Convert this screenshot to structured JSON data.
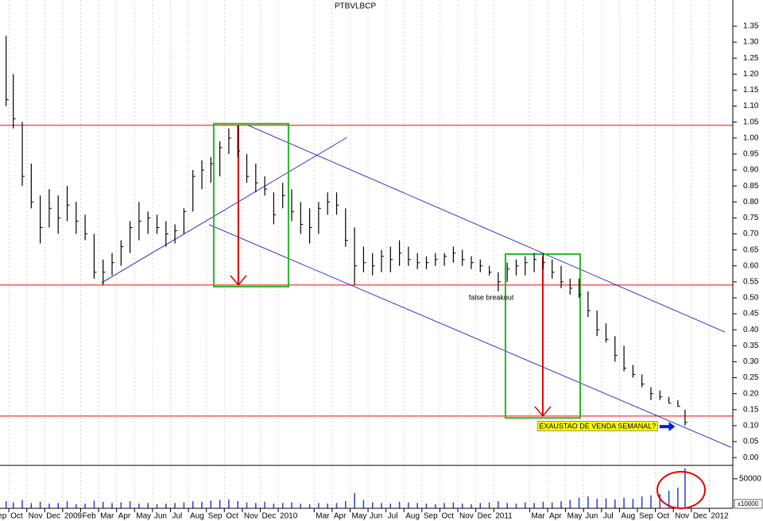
{
  "chart_data": {
    "type": "ohlc",
    "title": "PTBVLBCP",
    "x": [
      0.85,
      1.25,
      1.75,
      2.25,
      2.75,
      3.25,
      3.75,
      4.25,
      4.75,
      5.25,
      5.75,
      6.25,
      6.75,
      7.25,
      7.75,
      8.25,
      8.75,
      9.25,
      9.75,
      10.25,
      10.75,
      11.25,
      11.75,
      12.25,
      12.75,
      13.25,
      13.75,
      14.25,
      14.75,
      15.25,
      15.75,
      16.25,
      16.75,
      17.25,
      17.75,
      18.25,
      18.75,
      19.25,
      19.75,
      20.25,
      20.75,
      21.25,
      21.75,
      22.25,
      22.75,
      23.25,
      23.75,
      24.25,
      24.75,
      25.25,
      25.75,
      26.25,
      26.75,
      27.25,
      27.75,
      28.25,
      28.75,
      29.25,
      29.75,
      30.25,
      30.75,
      31.25,
      31.75,
      32.25,
      32.75,
      33.25,
      33.75,
      34.25,
      34.75,
      35.25,
      35.75,
      36.25,
      36.75,
      37.25,
      37.75,
      38.25,
      38.65
    ],
    "high": [
      1.32,
      1.2,
      1.05,
      0.92,
      0.82,
      0.84,
      0.82,
      0.85,
      0.8,
      0.76,
      0.7,
      0.62,
      0.64,
      0.68,
      0.74,
      0.8,
      0.77,
      0.76,
      0.74,
      0.73,
      0.78,
      0.9,
      0.93,
      0.94,
      0.99,
      1.03,
      1.04,
      0.95,
      0.92,
      0.88,
      0.83,
      0.86,
      0.84,
      0.8,
      0.78,
      0.8,
      0.83,
      0.83,
      0.78,
      0.72,
      0.66,
      0.64,
      0.65,
      0.66,
      0.68,
      0.66,
      0.64,
      0.63,
      0.64,
      0.64,
      0.66,
      0.65,
      0.63,
      0.62,
      0.6,
      0.58,
      0.61,
      0.62,
      0.63,
      0.64,
      0.64,
      0.62,
      0.6,
      0.56,
      0.56,
      0.52,
      0.46,
      0.42,
      0.38,
      0.35,
      0.29,
      0.26,
      0.22,
      0.21,
      0.19,
      0.18,
      0.15
    ],
    "low": [
      1.1,
      1.03,
      0.85,
      0.78,
      0.67,
      0.72,
      0.7,
      0.74,
      0.7,
      0.68,
      0.56,
      0.54,
      0.57,
      0.6,
      0.64,
      0.68,
      0.7,
      0.7,
      0.66,
      0.67,
      0.7,
      0.77,
      0.84,
      0.86,
      0.88,
      0.95,
      0.94,
      0.86,
      0.83,
      0.82,
      0.73,
      0.78,
      0.74,
      0.7,
      0.67,
      0.7,
      0.76,
      0.76,
      0.66,
      0.54,
      0.58,
      0.57,
      0.58,
      0.58,
      0.6,
      0.6,
      0.59,
      0.59,
      0.6,
      0.6,
      0.61,
      0.6,
      0.59,
      0.58,
      0.57,
      0.52,
      0.55,
      0.57,
      0.57,
      0.58,
      0.59,
      0.56,
      0.53,
      0.51,
      0.5,
      0.44,
      0.38,
      0.36,
      0.3,
      0.27,
      0.25,
      0.22,
      0.18,
      0.18,
      0.17,
      0.16,
      0.1
    ],
    "close": [
      1.12,
      1.06,
      0.88,
      0.8,
      0.72,
      0.78,
      0.75,
      0.79,
      0.74,
      0.7,
      0.58,
      0.58,
      0.61,
      0.66,
      0.72,
      0.74,
      0.75,
      0.72,
      0.7,
      0.71,
      0.77,
      0.88,
      0.9,
      0.92,
      0.97,
      1.0,
      0.96,
      0.88,
      0.86,
      0.84,
      0.76,
      0.82,
      0.77,
      0.73,
      0.72,
      0.78,
      0.8,
      0.79,
      0.68,
      0.6,
      0.61,
      0.6,
      0.63,
      0.62,
      0.64,
      0.62,
      0.61,
      0.61,
      0.62,
      0.63,
      0.64,
      0.62,
      0.61,
      0.6,
      0.58,
      0.55,
      0.59,
      0.6,
      0.61,
      0.62,
      0.61,
      0.58,
      0.55,
      0.53,
      0.51,
      0.46,
      0.4,
      0.37,
      0.32,
      0.28,
      0.26,
      0.23,
      0.2,
      0.19,
      0.17,
      0.16,
      0.11
    ],
    "volume": [
      12000,
      10000,
      14000,
      9000,
      11000,
      8000,
      9000,
      12000,
      7000,
      8000,
      13000,
      11000,
      9000,
      10000,
      12000,
      8000,
      9000,
      7000,
      8000,
      9000,
      10000,
      12000,
      11000,
      13000,
      14000,
      15000,
      12000,
      10000,
      9000,
      11000,
      8000,
      9000,
      10000,
      8000,
      7000,
      9000,
      8000,
      9000,
      12000,
      26000,
      14000,
      10000,
      9000,
      8000,
      11000,
      10000,
      9000,
      8000,
      7000,
      9000,
      10000,
      8000,
      7000,
      9000,
      10000,
      12000,
      9000,
      8000,
      10000,
      9000,
      11000,
      10000,
      12000,
      14000,
      18000,
      20000,
      16000,
      17000,
      15000,
      18000,
      16000,
      20000,
      22000,
      24000,
      30000,
      35000,
      68000
    ],
    "color": "#000000",
    "volume_color": "#2b3bd6",
    "xlim": [
      0.51,
      41.22
    ],
    "xticks": [
      {
        "value": 0,
        "label": "Sep"
      },
      {
        "value": 1,
        "label": "Oct"
      },
      {
        "value": 2,
        "label": "Nov"
      },
      {
        "value": 3,
        "label": "Dec"
      },
      {
        "value": 4,
        "label": "2009"
      },
      {
        "value": 5,
        "label": "Feb"
      },
      {
        "value": 6,
        "label": "Mar"
      },
      {
        "value": 7,
        "label": "Apr"
      },
      {
        "value": 8,
        "label": "May"
      },
      {
        "value": 9,
        "label": "Jun"
      },
      {
        "value": 10,
        "label": "Jul"
      },
      {
        "value": 11,
        "label": "Aug"
      },
      {
        "value": 12,
        "label": "Sep"
      },
      {
        "value": 13,
        "label": "Oct"
      },
      {
        "value": 14,
        "label": "Nov"
      },
      {
        "value": 15,
        "label": "Dec"
      },
      {
        "value": 16,
        "label": "2010"
      },
      {
        "value": 18,
        "label": "Mar"
      },
      {
        "value": 19,
        "label": "Apr"
      },
      {
        "value": 20,
        "label": "May"
      },
      {
        "value": 21,
        "label": "Jun"
      },
      {
        "value": 22,
        "label": "Jul"
      },
      {
        "value": 23,
        "label": "Aug"
      },
      {
        "value": 24,
        "label": "Sep"
      },
      {
        "value": 25,
        "label": "Oct"
      },
      {
        "value": 26,
        "label": "Nov"
      },
      {
        "value": 27,
        "label": "Dec"
      },
      {
        "value": 28,
        "label": "2011"
      },
      {
        "value": 30,
        "label": "Mar"
      },
      {
        "value": 31,
        "label": "Apr"
      },
      {
        "value": 32,
        "label": "May"
      },
      {
        "value": 33,
        "label": "Jun"
      },
      {
        "value": 34,
        "label": "Jul"
      },
      {
        "value": 35,
        "label": "Aug"
      },
      {
        "value": 36,
        "label": "Sep"
      },
      {
        "value": 37,
        "label": "Oct"
      },
      {
        "value": 38,
        "label": "Nov"
      },
      {
        "value": 39,
        "label": "Dec"
      },
      {
        "value": 40,
        "label": "2012"
      }
    ],
    "ylim": [
      -0.022,
      1.432
    ],
    "yticks": [
      {
        "value": 0,
        "label": "0.00"
      },
      {
        "value": 0.05,
        "label": "0.05"
      },
      {
        "value": 0.1,
        "label": "0.10"
      },
      {
        "value": 0.15,
        "label": "0.15"
      },
      {
        "value": 0.2,
        "label": "0.20"
      },
      {
        "value": 0.25,
        "label": "0.25"
      },
      {
        "value": 0.3,
        "label": "0.30"
      },
      {
        "value": 0.35,
        "label": "0.35"
      },
      {
        "value": 0.4,
        "label": "0.40"
      },
      {
        "value": 0.45,
        "label": "0.45"
      },
      {
        "value": 0.5,
        "label": "0.50"
      },
      {
        "value": 0.55,
        "label": "0.55"
      },
      {
        "value": 0.6,
        "label": "0.60"
      },
      {
        "value": 0.65,
        "label": "0.65"
      },
      {
        "value": 0.7,
        "label": "0.70"
      },
      {
        "value": 0.75,
        "label": "0.75"
      },
      {
        "value": 0.8,
        "label": "0.80"
      },
      {
        "value": 0.85,
        "label": "0.85"
      },
      {
        "value": 0.9,
        "label": "0.90"
      },
      {
        "value": 0.95,
        "label": "0.95"
      },
      {
        "value": 1.0,
        "label": "1.00"
      },
      {
        "value": 1.05,
        "label": "1.05"
      },
      {
        "value": 1.1,
        "label": "1.10"
      },
      {
        "value": 1.15,
        "label": "1.15"
      },
      {
        "value": 1.2,
        "label": "1.20"
      },
      {
        "value": 1.25,
        "label": "1.25"
      },
      {
        "value": 1.3,
        "label": "1.30"
      },
      {
        "value": 1.35,
        "label": "1.35"
      }
    ],
    "volume_ylim": [
      0,
      70000
    ],
    "volume_yticks": [
      50000
    ],
    "volume_unit": "x10000",
    "grid": true,
    "hlines": {
      "color": "#ff0000",
      "values": [
        1.04,
        0.54,
        0.13
      ]
    },
    "trendlines": {
      "color": "#2222cc",
      "lines": [
        [
          [
            6.17,
            0.547
          ],
          [
            19.83,
            1.002
          ]
        ],
        [
          [
            14.31,
            1.04
          ],
          [
            40.86,
            0.393
          ]
        ],
        [
          [
            12.15,
            0.729
          ],
          [
            41.22,
            0.032
          ]
        ]
      ]
    },
    "boxes": {
      "color": "#22bb22",
      "rects": [
        [
          12.41,
          16.57,
          0.535,
          1.045
        ],
        [
          28.65,
          32.81,
          0.124,
          0.637
        ]
      ]
    },
    "arrows": {
      "color": "#dd0000",
      "lines": [
        [
          13.78,
          1.04,
          0.54
        ],
        [
          30.73,
          0.63,
          0.13
        ]
      ]
    },
    "annotations": [
      {
        "text": "false breakout",
        "x": 26.61,
        "y": 0.5,
        "color": "#2222cc"
      },
      {
        "text": "EXAUSTAO DE VENDA SEMANAL?",
        "x": 30.53,
        "y": 0.097,
        "color": "#000000",
        "box": "#ffff00"
      }
    ],
    "pointer": {
      "color": "#0022dd",
      "from": [
        37.23,
        0.097
      ],
      "to": [
        38.1,
        0.097
      ]
    }
  }
}
